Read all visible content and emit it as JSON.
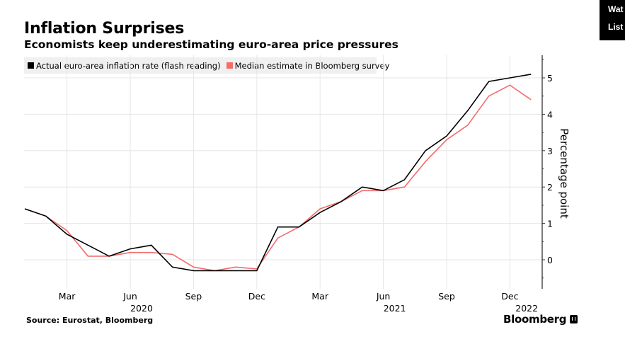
{
  "overlay": {
    "line1": "Wat",
    "line2": "List"
  },
  "footer": {
    "source": "Source: Eurostat, Bloomberg",
    "brand": "Bloomberg",
    "brand_icon": "bloomberg-chart-icon"
  },
  "colors": {
    "actual": "#000000",
    "median": "#f26c6c",
    "grid": "#e6e6e6",
    "legend_bg": "#f0f0f0"
  },
  "chart_data": {
    "type": "line",
    "title": "Inflation Surprises",
    "subtitle": "Economists keep underestimating euro-area price pressures",
    "xlabel": "",
    "ylabel": "Percentage point",
    "legend_placement": "top-left",
    "grid": true,
    "ylim": [
      -0.8,
      5.6
    ],
    "yticks": [
      0,
      1,
      2,
      3,
      4,
      5
    ],
    "x": [
      "2020-01",
      "2020-02",
      "2020-03",
      "2020-04",
      "2020-05",
      "2020-06",
      "2020-07",
      "2020-08",
      "2020-09",
      "2020-10",
      "2020-11",
      "2020-12",
      "2021-01",
      "2021-02",
      "2021-03",
      "2021-04",
      "2021-05",
      "2021-06",
      "2021-07",
      "2021-08",
      "2021-09",
      "2021-10",
      "2021-11",
      "2021-12",
      "2022-01"
    ],
    "xticks": [
      {
        "index": 2,
        "label": "Mar",
        "year": ""
      },
      {
        "index": 5,
        "label": "Jun",
        "year": "2020"
      },
      {
        "index": 8,
        "label": "Sep",
        "year": ""
      },
      {
        "index": 11,
        "label": "Dec",
        "year": ""
      },
      {
        "index": 14,
        "label": "Mar",
        "year": ""
      },
      {
        "index": 17,
        "label": "Jun",
        "year": "2021"
      },
      {
        "index": 20,
        "label": "Sep",
        "year": ""
      },
      {
        "index": 23,
        "label": "Dec",
        "year": ""
      },
      {
        "index": 24,
        "label": "",
        "year": "2022"
      }
    ],
    "series": [
      {
        "name": "Actual euro-area inflation rate (flash reading)",
        "color": "#000000",
        "values": [
          1.4,
          1.2,
          0.7,
          0.4,
          0.1,
          0.3,
          0.4,
          -0.2,
          -0.3,
          -0.3,
          -0.3,
          -0.3,
          0.9,
          0.9,
          1.3,
          1.6,
          2.0,
          1.9,
          2.2,
          3.0,
          3.4,
          4.1,
          4.9,
          5.0,
          5.1
        ]
      },
      {
        "name": "Median estimate in Bloomberg survey",
        "color": "#f26c6c",
        "values": [
          1.4,
          1.2,
          0.8,
          0.1,
          0.1,
          0.2,
          0.2,
          0.15,
          -0.2,
          -0.3,
          -0.2,
          -0.25,
          0.6,
          0.9,
          1.4,
          1.6,
          1.9,
          1.9,
          2.0,
          2.7,
          3.3,
          3.7,
          4.5,
          4.8,
          4.4
        ]
      }
    ]
  }
}
